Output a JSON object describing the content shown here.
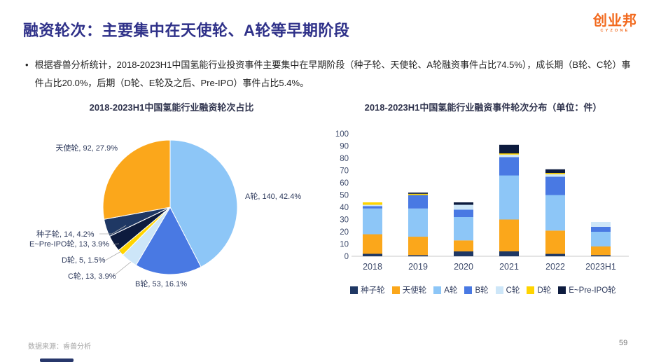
{
  "page": {
    "title": "融资轮次：主要集中在天使轮、A轮等早期阶段",
    "title_color": "#2F3189",
    "logo": {
      "text": "创业邦",
      "subtext": "CYZONE",
      "color": "#F2691D"
    },
    "bullet": "根据睿兽分析统计，2018-2023H1中国氢能行业投资事件主要集中在早期阶段（种子轮、天使轮、A轮融资事件占比74.5%），成长期（B轮、C轮）事件占比20.0%，后期（D轮、E轮及之后、Pre-IPO）事件占比5.4%。",
    "source": "数据来源：睿兽分析",
    "page_number": "59"
  },
  "chart_data": [
    {
      "type": "pie",
      "title": "2018-2023H1中国氢能行业融资轮次占比",
      "start_angle": "top, clockwise",
      "slices": [
        {
          "label": "A轮",
          "value": 140,
          "pct": "42.4%",
          "color": "#8DC6F7",
          "callout": "A轮, 140, 42.4%"
        },
        {
          "label": "B轮",
          "value": 53,
          "pct": "16.1%",
          "color": "#4979E3",
          "callout": "B轮, 53, 16.1%"
        },
        {
          "label": "C轮",
          "value": 13,
          "pct": "3.9%",
          "color": "#CDE6F8",
          "callout": "C轮, 13, 3.9%"
        },
        {
          "label": "D轮",
          "value": 5,
          "pct": "1.5%",
          "color": "#FFD400",
          "callout": "D轮, 5, 1.5%"
        },
        {
          "label": "E~Pre-IPO轮",
          "value": 13,
          "pct": "3.9%",
          "color": "#0D1B3E",
          "callout": "E~Pre-IPO轮, 13, 3.9%"
        },
        {
          "label": "种子轮",
          "value": 14,
          "pct": "4.2%",
          "color": "#1F3864",
          "callout": "种子轮, 14, 4.2%"
        },
        {
          "label": "天使轮",
          "value": 92,
          "pct": "27.9%",
          "color": "#FBA71B",
          "callout": "天使轮, 92, 27.9%"
        }
      ]
    },
    {
      "type": "stacked-bar",
      "title": "2018-2023H1中国氢能行业融资事件轮次分布（单位：件）",
      "categories": [
        "2018",
        "2019",
        "2020",
        "2021",
        "2022",
        "2023H1"
      ],
      "series": [
        {
          "name": "种子轮",
          "color": "#1F3864",
          "values": [
            2,
            1,
            4,
            4,
            2,
            1
          ]
        },
        {
          "name": "天使轮",
          "color": "#FBA71B",
          "values": [
            16,
            15,
            9,
            26,
            19,
            7
          ]
        },
        {
          "name": "A轮",
          "color": "#8DC6F7",
          "values": [
            21,
            23,
            19,
            36,
            29,
            12
          ]
        },
        {
          "name": "B轮",
          "color": "#4979E3",
          "values": [
            2,
            11,
            6,
            15,
            15,
            4
          ]
        },
        {
          "name": "C轮",
          "color": "#CDE6F8",
          "values": [
            1,
            0,
            4,
            2,
            2,
            4
          ]
        },
        {
          "name": "D轮",
          "color": "#FFD400",
          "values": [
            2,
            1,
            0,
            1,
            1,
            0
          ]
        },
        {
          "name": "E~Pre-IPO轮",
          "color": "#0D1B3E",
          "values": [
            0,
            1,
            2,
            7,
            3,
            0
          ]
        }
      ],
      "ylim": [
        0,
        100
      ],
      "ytick_step": 10,
      "grid": false,
      "legend_position": "bottom"
    }
  ]
}
